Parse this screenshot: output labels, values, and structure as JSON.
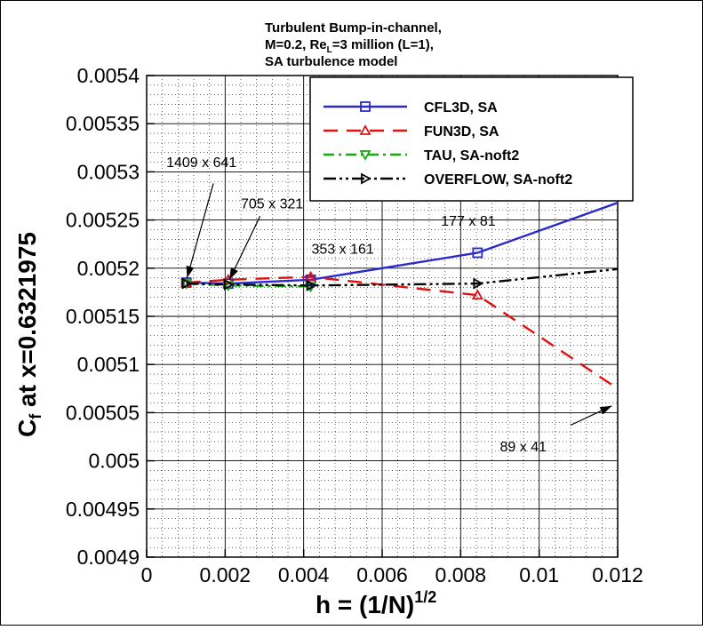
{
  "chart_data": {
    "type": "line",
    "title_lines": [
      "Turbulent Bump-in-channel,",
      "M=0.2, Re",
      "L",
      "=3 million (L=1),",
      "SA turbulence model"
    ],
    "xlabel_main": "h = (1/N)",
    "xlabel_sup": "1/2",
    "ylabel_main": "C",
    "ylabel_sub": "f",
    "ylabel_rest": " at x=0.6321975",
    "xlim": [
      0,
      0.012
    ],
    "ylim": [
      0.0049,
      0.0054
    ],
    "xticks": [
      0,
      0.002,
      0.004,
      0.006,
      0.008,
      0.01,
      0.012
    ],
    "xtick_labels": [
      "0",
      "0.002",
      "0.004",
      "0.006",
      "0.008",
      "0.01",
      "0.012"
    ],
    "yticks": [
      0.0049,
      0.00495,
      0.005,
      0.00505,
      0.0051,
      0.00515,
      0.0052,
      0.00525,
      0.0053,
      0.00535,
      0.0054
    ],
    "ytick_labels": [
      "0.0049",
      "0.00495",
      "0.005",
      "0.00505",
      "0.0051",
      "0.00515",
      "0.0052",
      "0.00525",
      "0.0053",
      "0.00535",
      "0.0054"
    ],
    "grid": true,
    "legend_position": "top-right",
    "series": [
      {
        "name": "CFL3D, SA",
        "color": "#2a2acc",
        "marker": "square",
        "x": [
          0.00101,
          0.00208,
          0.00418,
          0.00843,
          0.01696
        ],
        "y": [
          0.005185,
          0.005184,
          0.005188,
          0.005216,
          0.00534
        ]
      },
      {
        "name": "FUN3D, SA",
        "color": "#dd1111",
        "marker": "triangle-up",
        "x": [
          0.00101,
          0.00208,
          0.00418,
          0.00843,
          0.01696
        ],
        "y": [
          0.005185,
          0.005188,
          0.005191,
          0.005172,
          0.00494
        ]
      },
      {
        "name": "TAU, SA-noft2",
        "color": "#11aa11",
        "marker": "triangle-down",
        "x": [
          0.00101,
          0.00208,
          0.00418
        ],
        "y": [
          0.005184,
          0.005182,
          0.005181
        ]
      },
      {
        "name": "OVERFLOW, SA-noft2",
        "color": "#000000",
        "marker": "triangle-right",
        "x": [
          0.00101,
          0.00208,
          0.00418,
          0.00843,
          0.01696
        ],
        "y": [
          0.005184,
          0.005183,
          0.005182,
          0.005184,
          0.00522
        ]
      }
    ],
    "annotations": [
      {
        "text": "1409 x 641",
        "x": 0.0005,
        "y": 0.005305
      },
      {
        "text": "705 x 321",
        "x": 0.0024,
        "y": 0.005262
      },
      {
        "text": "353 x 161",
        "x": 0.0042,
        "y": 0.005215
      },
      {
        "text": "177 x 81",
        "x": 0.0075,
        "y": 0.005244
      },
      {
        "text": "89 x 41",
        "x": 0.009,
        "y": 0.00501
      }
    ],
    "arrows": [
      {
        "from": [
          0.0017,
          0.005288
        ],
        "to": [
          0.00103,
          0.00519
        ]
      },
      {
        "from": [
          0.00289,
          0.005254
        ],
        "to": [
          0.00211,
          0.005188
        ]
      },
      {
        "from": [
          0.0108,
          0.005037
        ],
        "to": [
          0.01185,
          0.005057
        ]
      }
    ]
  }
}
